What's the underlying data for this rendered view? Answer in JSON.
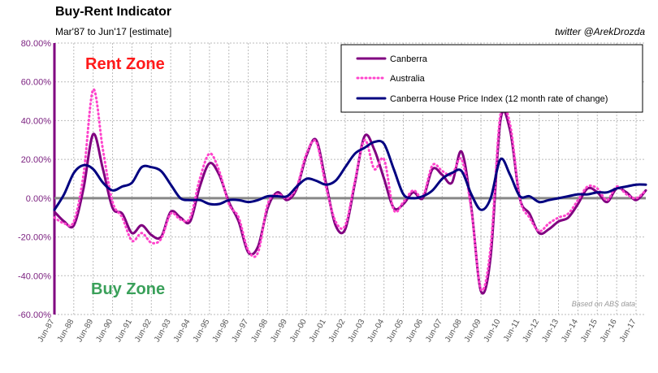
{
  "header": {
    "title": "Buy-Rent Indicator",
    "subtitle": "Mar'87 to Jun'17 [estimate]",
    "credit": "twitter @ArekDrozda"
  },
  "annotations": {
    "rent_zone": "Rent Zone",
    "buy_zone": "Buy Zone",
    "source": "Based on ABS data"
  },
  "colors": {
    "canberra": "#800080",
    "australia": "#ff44cc",
    "price_index": "#000080",
    "zero_line": "#888888",
    "axis": "#800080",
    "rent_zone": "#ff1a1a",
    "buy_zone": "#3aa05a"
  },
  "chart_data": {
    "type": "line",
    "title": "Buy-Rent Indicator",
    "xlabel": "",
    "ylabel": "",
    "ylim": [
      -60,
      80
    ],
    "yticks": [
      80,
      60,
      40,
      20,
      0,
      -20,
      -40,
      -60
    ],
    "ytick_labels": [
      "80.00%",
      "60.00%",
      "40.00%",
      "20.00%",
      "0.00%",
      "-20.00%",
      "-40.00%",
      "-60.00%"
    ],
    "xlim": [
      1987.0,
      2017.5
    ],
    "xtick_labels": [
      "Jun-87",
      "Jun-88",
      "Jun-89",
      "Jun-90",
      "Jun-91",
      "Jun-92",
      "Jun-93",
      "Jun-94",
      "Jun-95",
      "Jun-96",
      "Jun-97",
      "Jun-98",
      "Jun-99",
      "Jun-00",
      "Jun-01",
      "Jun-02",
      "Jun-03",
      "Jun-04",
      "Jun-05",
      "Jun-06",
      "Jun-07",
      "Jun-08",
      "Jun-09",
      "Jun-10",
      "Jun-11",
      "Jun-12",
      "Jun-13",
      "Jun-14",
      "Jun-15",
      "Jun-16",
      "Jun-17"
    ],
    "legend": {
      "position": "top-right"
    },
    "series": [
      {
        "name": "Canberra",
        "style": "solid",
        "x": [
          1987.0,
          1987.5,
          1988.0,
          1988.5,
          1989.0,
          1989.5,
          1990.0,
          1990.5,
          1991.0,
          1991.5,
          1992.0,
          1992.5,
          1993.0,
          1993.5,
          1994.0,
          1994.5,
          1995.0,
          1995.5,
          1996.0,
          1996.5,
          1997.0,
          1997.5,
          1998.0,
          1998.5,
          1999.0,
          1999.5,
          2000.0,
          2000.5,
          2001.0,
          2001.5,
          2002.0,
          2002.5,
          2003.0,
          2003.5,
          2004.0,
          2004.5,
          2005.0,
          2005.5,
          2006.0,
          2006.5,
          2007.0,
          2007.5,
          2008.0,
          2008.5,
          2009.0,
          2009.5,
          2010.0,
          2010.5,
          2011.0,
          2011.5,
          2012.0,
          2012.5,
          2013.0,
          2013.5,
          2014.0,
          2014.5,
          2015.0,
          2015.5,
          2016.0,
          2016.5,
          2017.0,
          2017.5
        ],
        "values": [
          -7,
          -12,
          -14,
          5,
          33,
          15,
          -5,
          -8,
          -18,
          -14,
          -19,
          -20,
          -7,
          -10,
          -12,
          6,
          18,
          12,
          -2,
          -12,
          -28,
          -25,
          -5,
          3,
          -1,
          5,
          22,
          30,
          8,
          -14,
          -16,
          8,
          32,
          25,
          10,
          -5,
          -3,
          3,
          0,
          15,
          12,
          8,
          24,
          -5,
          -48,
          -30,
          40,
          35,
          0,
          -8,
          -18,
          -16,
          -12,
          -10,
          -3,
          5,
          3,
          -2,
          5,
          3,
          -1,
          4
        ]
      },
      {
        "name": "Australia",
        "style": "dotted",
        "x": [
          1987.0,
          1987.5,
          1988.0,
          1988.5,
          1989.0,
          1989.5,
          1990.0,
          1990.5,
          1991.0,
          1991.5,
          1992.0,
          1992.5,
          1993.0,
          1993.5,
          1994.0,
          1994.5,
          1995.0,
          1995.5,
          1996.0,
          1996.5,
          1997.0,
          1997.5,
          1998.0,
          1998.5,
          1999.0,
          1999.5,
          2000.0,
          2000.5,
          2001.0,
          2001.5,
          2002.0,
          2002.5,
          2003.0,
          2003.5,
          2004.0,
          2004.5,
          2005.0,
          2005.5,
          2006.0,
          2006.5,
          2007.0,
          2007.5,
          2008.0,
          2008.5,
          2009.0,
          2009.5,
          2010.0,
          2010.5,
          2011.0,
          2011.5,
          2012.0,
          2012.5,
          2013.0,
          2013.5,
          2014.0,
          2014.5,
          2015.0,
          2015.5,
          2016.0,
          2016.5,
          2017.0,
          2017.5
        ],
        "values": [
          -10,
          -13,
          -12,
          12,
          56,
          25,
          -2,
          -10,
          -22,
          -18,
          -23,
          -21,
          -8,
          -11,
          -10,
          10,
          23,
          14,
          -3,
          -10,
          -27,
          -28,
          -3,
          2,
          0,
          6,
          23,
          29,
          6,
          -12,
          -14,
          9,
          30,
          15,
          20,
          -6,
          -2,
          4,
          1,
          17,
          14,
          12,
          20,
          -6,
          -47,
          -25,
          43,
          38,
          0,
          -10,
          -17,
          -13,
          -10,
          -8,
          -1,
          6,
          5,
          -1,
          6,
          2,
          0,
          4
        ]
      },
      {
        "name": "Canberra House Price Index (12 month rate of change)",
        "style": "solid",
        "x": [
          1987.0,
          1987.5,
          1988.0,
          1988.5,
          1989.0,
          1989.5,
          1990.0,
          1990.5,
          1991.0,
          1991.5,
          1992.0,
          1992.5,
          1993.0,
          1993.5,
          1994.0,
          1994.5,
          1995.0,
          1995.5,
          1996.0,
          1996.5,
          1997.0,
          1997.5,
          1998.0,
          1998.5,
          1999.0,
          1999.5,
          2000.0,
          2000.5,
          2001.0,
          2001.5,
          2002.0,
          2002.5,
          2003.0,
          2003.5,
          2004.0,
          2004.5,
          2005.0,
          2005.5,
          2006.0,
          2006.5,
          2007.0,
          2007.5,
          2008.0,
          2008.5,
          2009.0,
          2009.5,
          2010.0,
          2010.5,
          2011.0,
          2011.5,
          2012.0,
          2012.5,
          2013.0,
          2013.5,
          2014.0,
          2014.5,
          2015.0,
          2015.5,
          2016.0,
          2016.5,
          2017.0,
          2017.5
        ],
        "values": [
          -6,
          2,
          13,
          17,
          15,
          8,
          4,
          6,
          8,
          16,
          16,
          14,
          7,
          0,
          -1,
          -1,
          -3,
          -3,
          -1,
          -1,
          -2,
          -1,
          1,
          1,
          1,
          6,
          10,
          9,
          7,
          9,
          16,
          23,
          26,
          29,
          28,
          15,
          2,
          0,
          1,
          4,
          10,
          13,
          14,
          2,
          -6,
          0,
          20,
          12,
          1,
          1,
          -2,
          -1,
          0,
          1,
          2,
          2,
          3,
          3,
          5,
          6,
          7,
          7
        ]
      }
    ]
  }
}
